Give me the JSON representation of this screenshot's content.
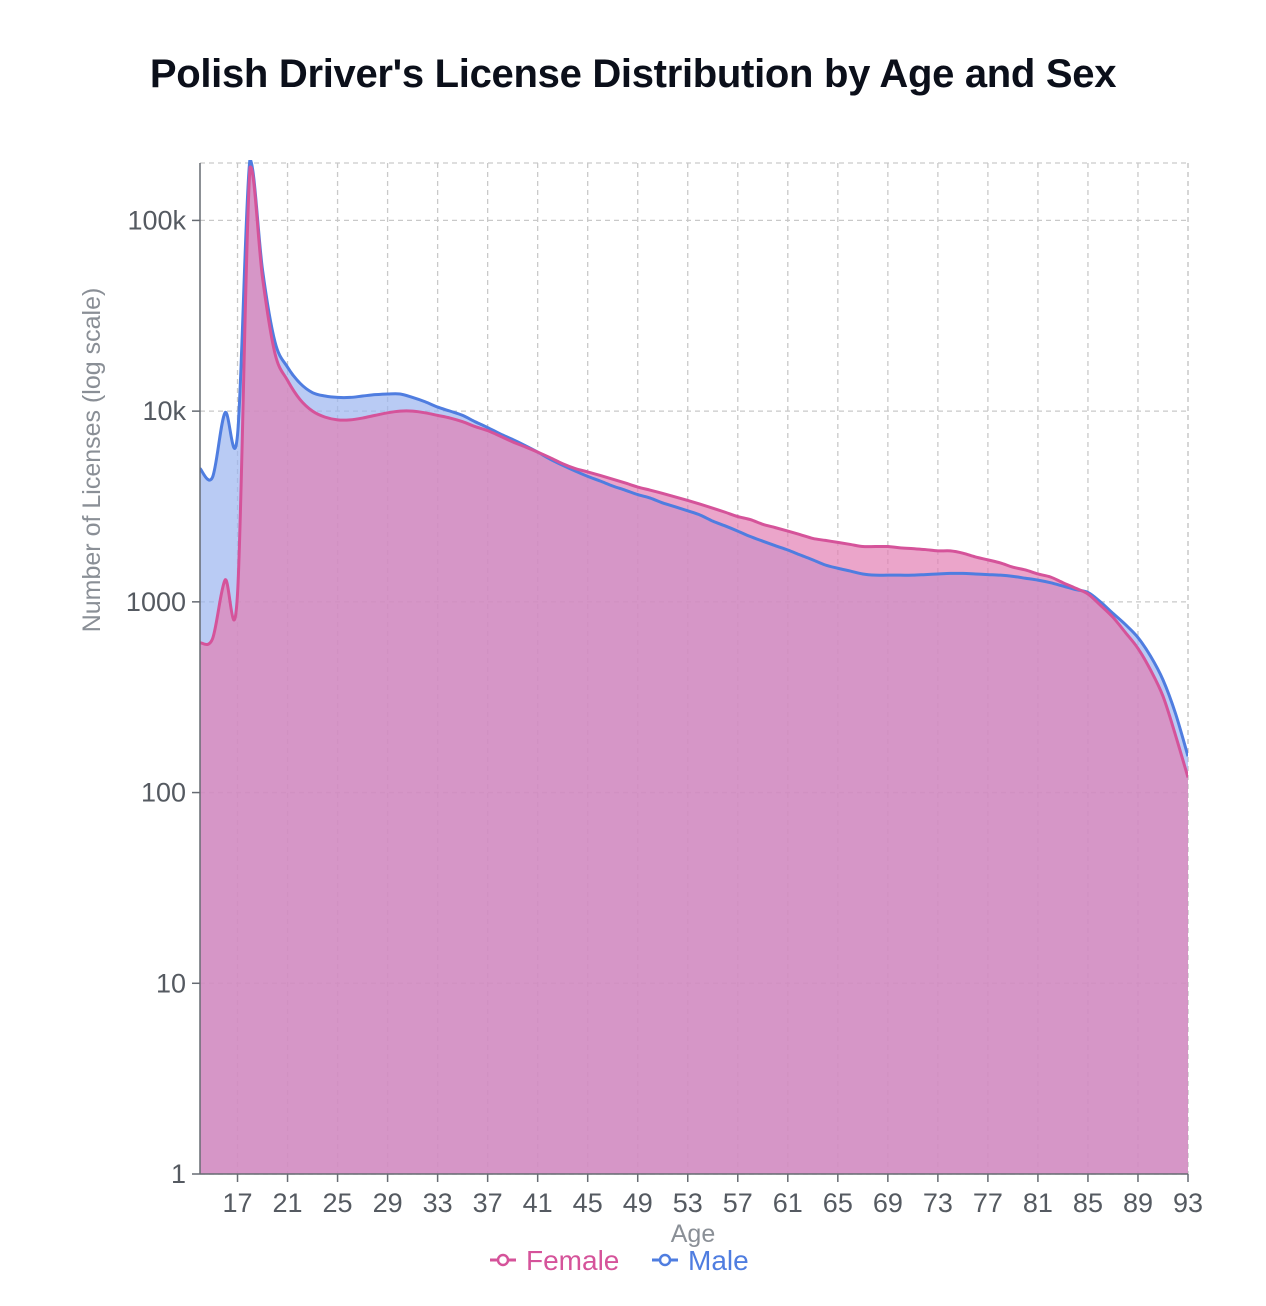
{
  "chart_data": {
    "type": "area",
    "title": "Polish Driver's License Distribution by Age and Sex",
    "xlabel": "Age",
    "ylabel": "Number of Licenses (log scale)",
    "y_scale": "log",
    "ylim": [
      1,
      200000
    ],
    "xlim": [
      14,
      93
    ],
    "x_ticks": [
      17,
      21,
      25,
      29,
      33,
      37,
      41,
      45,
      49,
      53,
      57,
      61,
      65,
      69,
      73,
      77,
      81,
      85,
      89,
      93
    ],
    "y_ticks": [
      {
        "value": 1,
        "label": "1"
      },
      {
        "value": 10,
        "label": "10"
      },
      {
        "value": 100,
        "label": "100"
      },
      {
        "value": 1000,
        "label": "1000"
      },
      {
        "value": 10000,
        "label": "10k"
      },
      {
        "value": 100000,
        "label": "100k"
      }
    ],
    "grid": true,
    "legend_position": "bottom",
    "series": [
      {
        "name": "Female",
        "color": "#d5539a",
        "fill": "#e27fb4",
        "points": [
          [
            14,
            610
          ],
          [
            15,
            640
          ],
          [
            16,
            1300
          ],
          [
            17,
            1100
          ],
          [
            18,
            190000
          ],
          [
            19,
            50000
          ],
          [
            20,
            20000
          ],
          [
            21,
            14500
          ],
          [
            22,
            11500
          ],
          [
            23,
            10000
          ],
          [
            24,
            9300
          ],
          [
            25,
            9000
          ],
          [
            26,
            9000
          ],
          [
            27,
            9200
          ],
          [
            28,
            9500
          ],
          [
            29,
            9800
          ],
          [
            30,
            10000
          ],
          [
            31,
            10000
          ],
          [
            32,
            9800
          ],
          [
            33,
            9500
          ],
          [
            34,
            9200
          ],
          [
            35,
            8800
          ],
          [
            36,
            8300
          ],
          [
            37,
            7900
          ],
          [
            38,
            7400
          ],
          [
            39,
            6900
          ],
          [
            40,
            6500
          ],
          [
            41,
            6100
          ],
          [
            42,
            5700
          ],
          [
            43,
            5300
          ],
          [
            44,
            5000
          ],
          [
            45,
            4800
          ],
          [
            46,
            4600
          ],
          [
            47,
            4400
          ],
          [
            48,
            4200
          ],
          [
            49,
            4000
          ],
          [
            50,
            3850
          ],
          [
            51,
            3700
          ],
          [
            52,
            3550
          ],
          [
            53,
            3400
          ],
          [
            54,
            3250
          ],
          [
            55,
            3100
          ],
          [
            56,
            2950
          ],
          [
            57,
            2800
          ],
          [
            58,
            2700
          ],
          [
            59,
            2550
          ],
          [
            60,
            2450
          ],
          [
            61,
            2350
          ],
          [
            62,
            2250
          ],
          [
            63,
            2150
          ],
          [
            64,
            2100
          ],
          [
            65,
            2050
          ],
          [
            66,
            2000
          ],
          [
            67,
            1950
          ],
          [
            68,
            1950
          ],
          [
            69,
            1950
          ],
          [
            70,
            1920
          ],
          [
            71,
            1900
          ],
          [
            72,
            1880
          ],
          [
            73,
            1850
          ],
          [
            74,
            1850
          ],
          [
            75,
            1800
          ],
          [
            76,
            1720
          ],
          [
            77,
            1660
          ],
          [
            78,
            1600
          ],
          [
            79,
            1520
          ],
          [
            80,
            1470
          ],
          [
            81,
            1400
          ],
          [
            82,
            1350
          ],
          [
            83,
            1260
          ],
          [
            84,
            1180
          ],
          [
            85,
            1100
          ],
          [
            86,
            960
          ],
          [
            87,
            830
          ],
          [
            88,
            690
          ],
          [
            89,
            570
          ],
          [
            90,
            440
          ],
          [
            91,
            320
          ],
          [
            92,
            200
          ],
          [
            93,
            120
          ]
        ]
      },
      {
        "name": "Male",
        "color": "#4f7de0",
        "fill": "#9bb5f0",
        "points": [
          [
            14,
            5000
          ],
          [
            15,
            4500
          ],
          [
            16,
            9800
          ],
          [
            17,
            7500
          ],
          [
            18,
            210000
          ],
          [
            19,
            55000
          ],
          [
            20,
            23000
          ],
          [
            21,
            17000
          ],
          [
            22,
            14000
          ],
          [
            23,
            12500
          ],
          [
            24,
            12000
          ],
          [
            25,
            11800
          ],
          [
            26,
            11800
          ],
          [
            27,
            12000
          ],
          [
            28,
            12200
          ],
          [
            29,
            12300
          ],
          [
            30,
            12300
          ],
          [
            31,
            11800
          ],
          [
            32,
            11200
          ],
          [
            33,
            10500
          ],
          [
            34,
            10000
          ],
          [
            35,
            9500
          ],
          [
            36,
            8800
          ],
          [
            37,
            8200
          ],
          [
            38,
            7600
          ],
          [
            39,
            7100
          ],
          [
            40,
            6600
          ],
          [
            41,
            6100
          ],
          [
            42,
            5600
          ],
          [
            43,
            5200
          ],
          [
            44,
            4850
          ],
          [
            45,
            4550
          ],
          [
            46,
            4300
          ],
          [
            47,
            4050
          ],
          [
            48,
            3850
          ],
          [
            49,
            3650
          ],
          [
            50,
            3500
          ],
          [
            51,
            3300
          ],
          [
            52,
            3150
          ],
          [
            53,
            3000
          ],
          [
            54,
            2850
          ],
          [
            55,
            2650
          ],
          [
            56,
            2500
          ],
          [
            57,
            2350
          ],
          [
            58,
            2200
          ],
          [
            59,
            2080
          ],
          [
            60,
            1970
          ],
          [
            61,
            1870
          ],
          [
            62,
            1760
          ],
          [
            63,
            1660
          ],
          [
            64,
            1560
          ],
          [
            65,
            1500
          ],
          [
            66,
            1450
          ],
          [
            67,
            1400
          ],
          [
            68,
            1380
          ],
          [
            69,
            1380
          ],
          [
            70,
            1380
          ],
          [
            71,
            1380
          ],
          [
            72,
            1390
          ],
          [
            73,
            1400
          ],
          [
            74,
            1410
          ],
          [
            75,
            1410
          ],
          [
            76,
            1400
          ],
          [
            77,
            1390
          ],
          [
            78,
            1380
          ],
          [
            79,
            1360
          ],
          [
            80,
            1330
          ],
          [
            81,
            1300
          ],
          [
            82,
            1260
          ],
          [
            83,
            1210
          ],
          [
            84,
            1160
          ],
          [
            85,
            1120
          ],
          [
            86,
            1000
          ],
          [
            87,
            870
          ],
          [
            88,
            760
          ],
          [
            89,
            650
          ],
          [
            90,
            520
          ],
          [
            91,
            390
          ],
          [
            92,
            260
          ],
          [
            93,
            155
          ]
        ]
      }
    ]
  }
}
